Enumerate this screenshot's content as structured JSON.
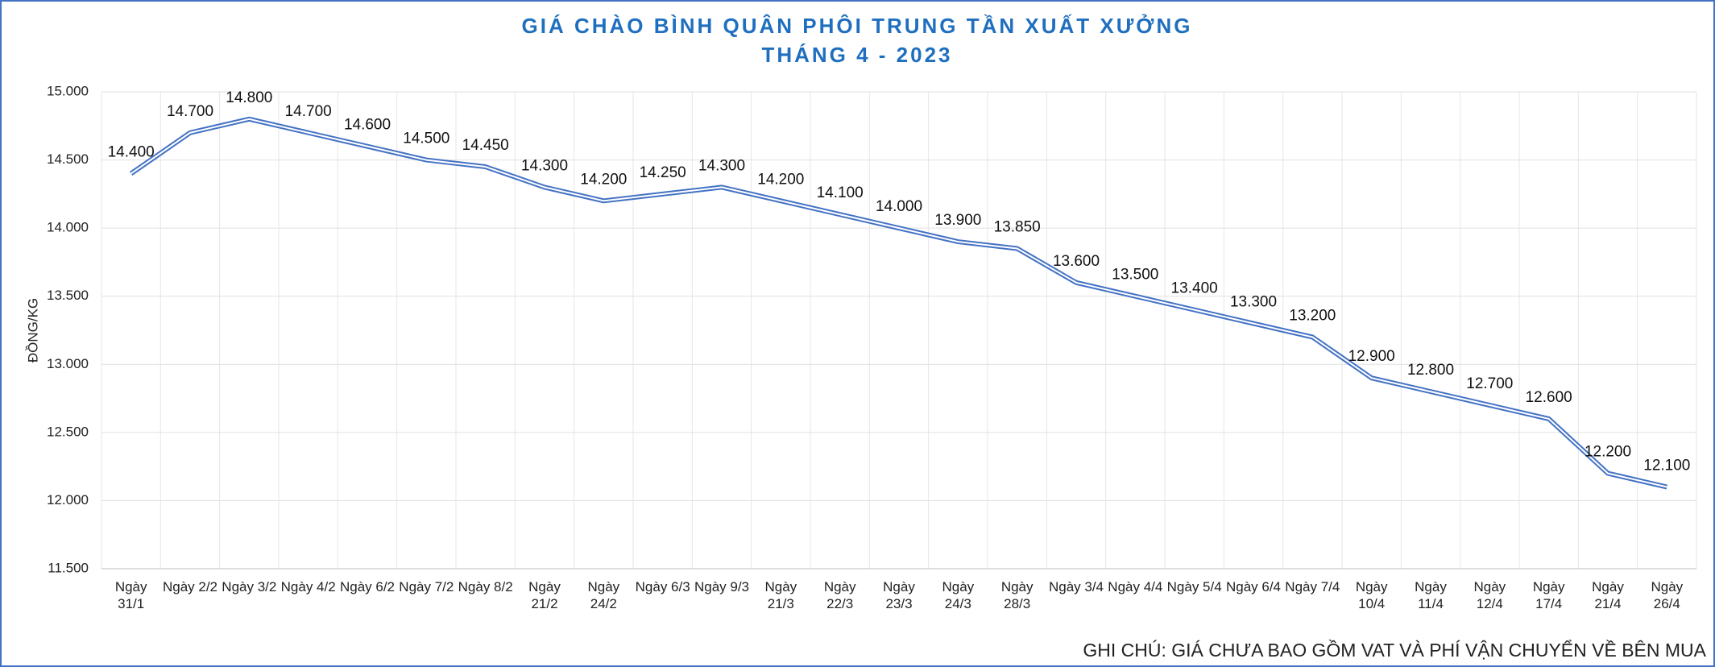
{
  "chart_data": {
    "type": "line",
    "title": "GIÁ CHÀO BÌNH QUÂN PHÔI TRUNG TẦN XUẤT XƯỞNG",
    "subtitle": "THÁNG 4 - 2023",
    "y_label": "ĐỒNG/KG",
    "note": "GHI CHÚ: GIÁ CHƯA BAO GỒM VAT VÀ PHÍ VẬN CHUYỂN VỀ BÊN MUA",
    "categories": [
      "Ngày 31/1",
      "Ngày 2/2",
      "Ngày 3/2",
      "Ngày 4/2",
      "Ngày 6/2",
      "Ngày 7/2",
      "Ngày 8/2",
      "Ngày 21/2",
      "Ngày 24/2",
      "Ngày 6/3",
      "Ngày 9/3",
      "Ngày 21/3",
      "Ngày 22/3",
      "Ngày 23/3",
      "Ngày 24/3",
      "Ngày 28/3",
      "Ngày 3/4",
      "Ngày 4/4",
      "Ngày 5/4",
      "Ngày 6/4",
      "Ngày 7/4",
      "Ngày 10/4",
      "Ngày 11/4",
      "Ngày 12/4",
      "Ngày 17/4",
      "Ngày 21/4",
      "Ngày 26/4"
    ],
    "values": [
      14400,
      14700,
      14800,
      14700,
      14600,
      14500,
      14450,
      14300,
      14200,
      14250,
      14300,
      14200,
      14100,
      14000,
      13900,
      13850,
      13600,
      13500,
      13400,
      13300,
      13200,
      12900,
      12800,
      12700,
      12600,
      12200,
      12100
    ],
    "value_labels": [
      "14.400",
      "14.700",
      "14.800",
      "14.700",
      "14.600",
      "14.500",
      "14.450",
      "14.300",
      "14.200",
      "14.250",
      "14.300",
      "14.200",
      "14.100",
      "14.000",
      "13.900",
      "13.850",
      "13.600",
      "13.500",
      "13.400",
      "13.300",
      "13.200",
      "12.900",
      "12.800",
      "12.700",
      "12.600",
      "12.200",
      "12.100"
    ],
    "color": "#4472c4",
    "ylim": [
      11500,
      15000
    ],
    "yticks": [
      {
        "value": 11500,
        "label": "11.500"
      },
      {
        "value": 12000,
        "label": "12.000"
      },
      {
        "value": 12500,
        "label": "12.500"
      },
      {
        "value": 13000,
        "label": "13.000"
      },
      {
        "value": 13500,
        "label": "13.500"
      },
      {
        "value": 14000,
        "label": "14.000"
      },
      {
        "value": 14500,
        "label": "14.500"
      },
      {
        "value": 15000,
        "label": "15.000"
      }
    ],
    "grid": true
  }
}
